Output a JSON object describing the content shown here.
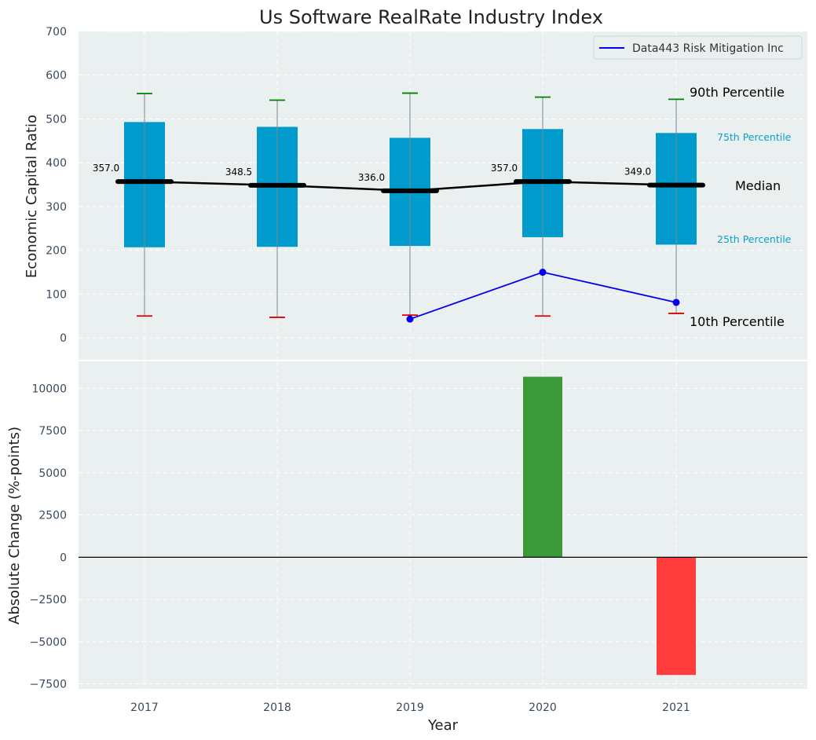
{
  "chart_data": [
    {
      "type": "box",
      "title": "Us Software RealRate Industry Index",
      "ylabel": "Economic Capital Ratio",
      "ylim": [
        -50,
        700
      ],
      "yticks": [
        0,
        100,
        200,
        300,
        400,
        500,
        600,
        700
      ],
      "categories": [
        "2017",
        "2018",
        "2019",
        "2020",
        "2021"
      ],
      "grid": true,
      "legend_position": "top-right",
      "percentiles": {
        "p10": [
          50,
          47,
          52,
          50,
          56
        ],
        "p25": [
          207,
          208,
          210,
          230,
          213
        ],
        "median": [
          357.0,
          348.5,
          336.0,
          357.0,
          349.0
        ],
        "p75": [
          493,
          482,
          457,
          477,
          468
        ],
        "p90": [
          558,
          543,
          559,
          550,
          545
        ]
      },
      "median_labels": [
        "357.0",
        "348.5",
        "336.0",
        "357.0",
        "349.0"
      ],
      "annotations": {
        "p90": "90th Percentile",
        "p75": "75th Percentile",
        "median": "Median",
        "p25": "25th Percentile",
        "p10": "10th Percentile"
      },
      "series": [
        {
          "name": "Data443 Risk Mitigation Inc",
          "x": [
            "2019",
            "2020",
            "2021"
          ],
          "values": [
            43,
            150,
            81
          ],
          "color": "#0000ee"
        }
      ],
      "colors": {
        "box": "#009bcc",
        "median": "#000000",
        "p90_cap": "#008000",
        "p10_cap": "#dd0000",
        "background": "#eaeff0"
      }
    },
    {
      "type": "bar",
      "ylabel": "Absolute Change (%-points)",
      "xlabel": "Year",
      "ylim": [
        -7800,
        11600
      ],
      "yticks": [
        -7500,
        -5000,
        -2500,
        0,
        2500,
        5000,
        7500,
        10000
      ],
      "ytick_labels": [
        "−7500",
        "−5000",
        "−2500",
        "0",
        "2500",
        "5000",
        "7500",
        "10000"
      ],
      "categories": [
        "2017",
        "2018",
        "2019",
        "2020",
        "2021"
      ],
      "values": [
        null,
        null,
        null,
        10690,
        -6970
      ],
      "grid": true,
      "colors": {
        "positive": "#3a9a3a",
        "negative": "#ff3b3b"
      }
    }
  ]
}
